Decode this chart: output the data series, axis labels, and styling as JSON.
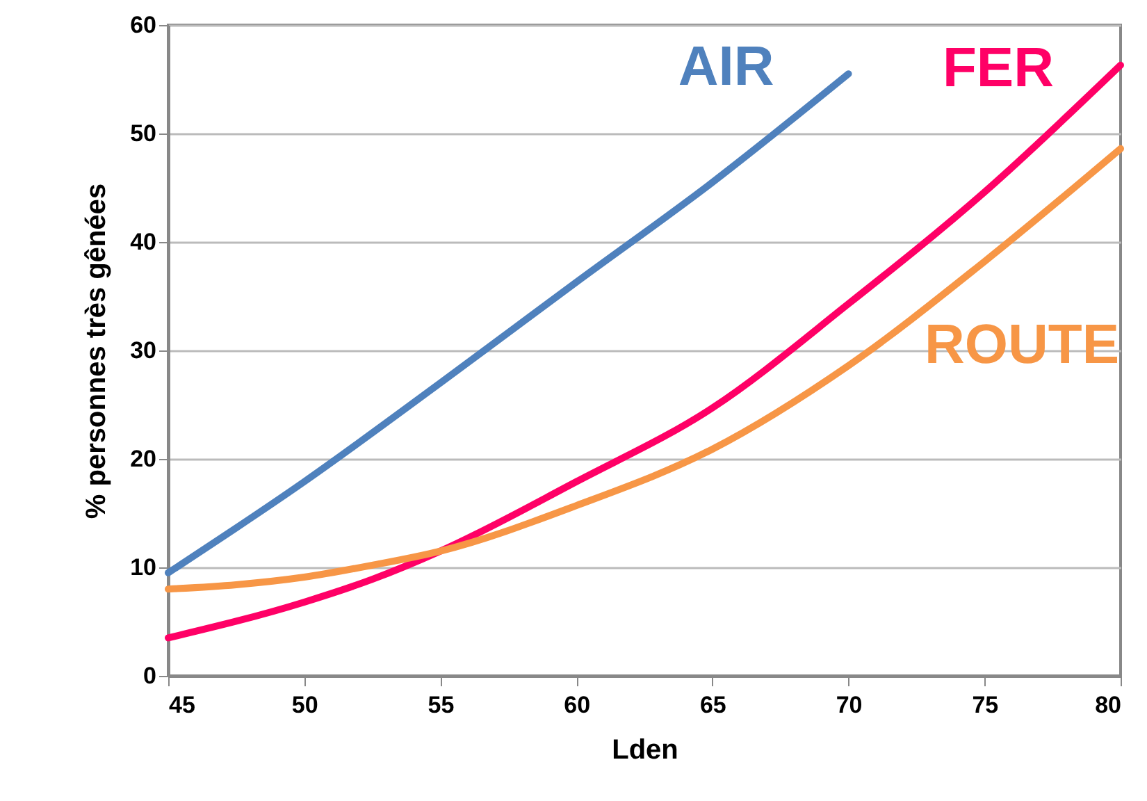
{
  "chart_data": {
    "type": "line",
    "xlabel": "Lden",
    "ylabel": "% personnes très gênées",
    "xlim": [
      45,
      80
    ],
    "xticks": [
      45,
      50,
      55,
      60,
      65,
      70,
      75,
      80
    ],
    "ylim": [
      0,
      60
    ],
    "yticks": [
      0,
      10,
      20,
      30,
      40,
      50,
      60
    ],
    "grid": "y",
    "marker": "none",
    "line_style": "solid",
    "series": [
      {
        "name": "AIR",
        "color": "#4f81bd",
        "x": [
          45,
          50,
          55,
          60,
          65,
          70
        ],
        "values": [
          9.5,
          17.9,
          27.0,
          36.3,
          45.5,
          55.5
        ]
      },
      {
        "name": "FER",
        "color": "#ff0066",
        "x": [
          45,
          50,
          52.5,
          55,
          60,
          65,
          70,
          75,
          80
        ],
        "values": [
          3.5,
          6.8,
          8.9,
          11.5,
          17.9,
          24.7,
          34.3,
          44.6,
          56.3
        ]
      },
      {
        "name": "ROUTE",
        "color": "#f79646",
        "x": [
          45,
          47.5,
          50,
          52.5,
          55,
          60,
          65,
          70,
          75,
          80
        ],
        "values": [
          8.0,
          8.4,
          9.1,
          10.2,
          11.5,
          15.7,
          20.9,
          28.6,
          38.2,
          48.6
        ]
      }
    ]
  }
}
